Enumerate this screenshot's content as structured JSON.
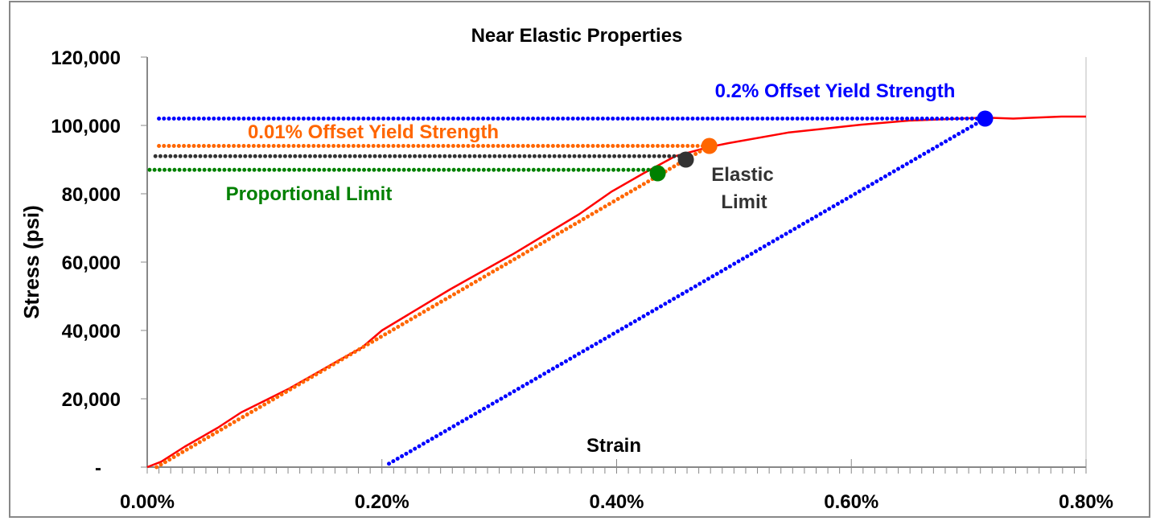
{
  "chart_data": {
    "type": "line",
    "title": "Near Elastic Properties",
    "xlabel": "Strain",
    "ylabel": "Stress (psi)",
    "xlim": [
      0,
      0.8
    ],
    "ylim": [
      0,
      120000
    ],
    "x_unit": "%",
    "x_ticks": [
      "0.00%",
      "0.20%",
      "0.40%",
      "0.60%",
      "0.80%"
    ],
    "x_tick_values": [
      0,
      0.2,
      0.4,
      0.6,
      0.8
    ],
    "y_ticks": [
      "-",
      "20,000",
      "40,000",
      "60,000",
      "80,000",
      "100,000",
      "120,000"
    ],
    "y_tick_values": [
      0,
      20000,
      40000,
      60000,
      80000,
      100000,
      120000
    ],
    "grid": false,
    "legend": "none",
    "series": [
      {
        "color": "#ff0000",
        "style": "solid",
        "x": [
          0,
          0.012,
          0.032,
          0.06,
          0.08,
          0.121,
          0.162,
          0.183,
          0.2,
          0.258,
          0.313,
          0.368,
          0.396,
          0.423,
          0.45,
          0.478,
          0.495,
          0.546,
          0.608,
          0.649,
          0.714,
          0.738,
          0.779,
          0.8
        ],
        "y": [
          0,
          1600,
          6000,
          11500,
          16000,
          23000,
          31000,
          35000,
          40000,
          52000,
          62600,
          74000,
          80700,
          86000,
          91000,
          93600,
          94800,
          97900,
          100200,
          101400,
          102300,
          102000,
          102600,
          102600
        ]
      },
      {
        "color": "#ff6600",
        "style": "dotted",
        "x": [
          0.008,
          0.479
        ],
        "y": [
          0,
          94000
        ]
      },
      {
        "color": "#0000ff",
        "style": "dotted",
        "x": [
          0.206,
          0.714
        ],
        "y": [
          1000,
          102000
        ]
      },
      {
        "color": "#0000ff",
        "style": "dotted",
        "x": [
          0.01,
          0.714
        ],
        "y": [
          102000,
          102000
        ]
      },
      {
        "color": "#ff6600",
        "style": "dotted",
        "x": [
          0.01,
          0.479
        ],
        "y": [
          94000,
          94000
        ]
      },
      {
        "color": "#333333",
        "style": "dotted",
        "x": [
          0.007,
          0.459
        ],
        "y": [
          91000,
          91000
        ]
      },
      {
        "color": "#008000",
        "style": "dotted",
        "x": [
          0.002,
          0.435
        ],
        "y": [
          87000,
          87000
        ]
      }
    ],
    "points": [
      {
        "name": "Proportional Limit",
        "x": 0.435,
        "y": 86000,
        "color": "#008000"
      },
      {
        "name": "Elastic Limit",
        "x": 0.459,
        "y": 90000,
        "color": "#333333"
      },
      {
        "name": "0.01% Offset Yield Strength",
        "x": 0.479,
        "y": 94000,
        "color": "#ff6600"
      },
      {
        "name": "0.2% Offset Yield Strength",
        "x": 0.714,
        "y": 102000,
        "color": "#0000ff"
      }
    ],
    "annotations": {
      "offset_02": "0.2% Offset Yield Strength",
      "offset_001": "0.01% Offset Yield Strength",
      "elastic_1": "Elastic",
      "elastic_2": "Limit",
      "proportional": "Proportional Limit"
    }
  }
}
